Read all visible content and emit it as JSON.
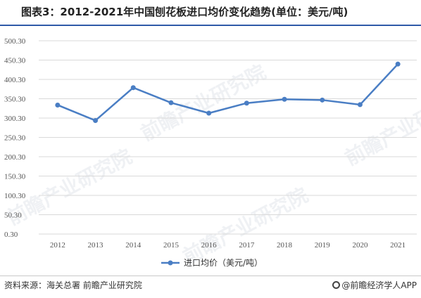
{
  "title": "图表3：2012-2021年中国刨花板进口均价变化趋势(单位：美元/吨)",
  "source": "资料来源：海关总署 前瞻产业研究院",
  "brand": "@前瞻经济学人APP",
  "watermark": "前瞻产业研究院",
  "colors": {
    "line": "#4a7ec4",
    "accent": "#2f5aa8"
  },
  "chart_data": {
    "type": "line",
    "x": [
      "2012",
      "2013",
      "2014",
      "2015",
      "2016",
      "2017",
      "2018",
      "2019",
      "2020",
      "2021"
    ],
    "series": [
      {
        "name": "进口均价（美元/吨）",
        "values": [
          334,
          294,
          379,
          340,
          313,
          339,
          349,
          347,
          335,
          440
        ]
      }
    ],
    "yticks": [
      "0.30",
      "50.30",
      "100.30",
      "150.30",
      "200.30",
      "250.30",
      "300.30",
      "350.30",
      "400.30",
      "450.30",
      "500.30"
    ],
    "ylim": [
      0.3,
      500.3
    ],
    "grid": true,
    "legend": "bottom"
  }
}
